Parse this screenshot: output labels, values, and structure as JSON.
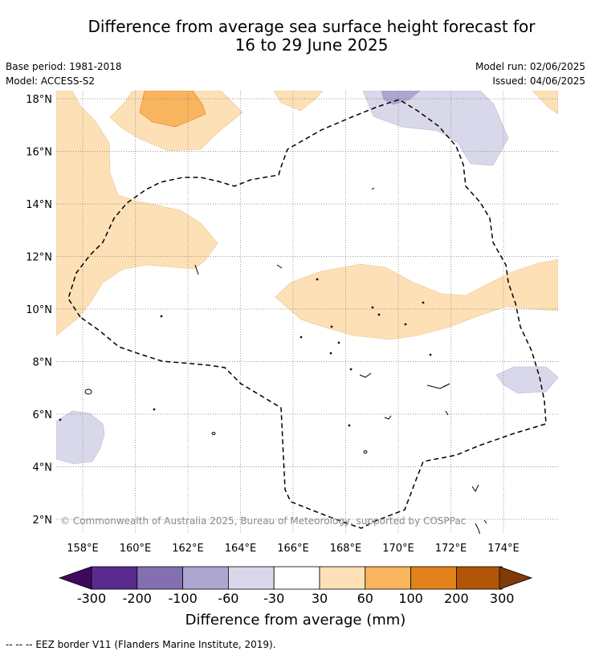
{
  "title": {
    "line1": "Difference from average sea surface height forecast for",
    "line2": "16 to 29 June 2025"
  },
  "meta": {
    "base_period": "Base period: 1981-2018",
    "model": "Model: ACCESS-S2",
    "model_run": "Model run: 02/06/2025",
    "issued": "Issued: 04/06/2025"
  },
  "map": {
    "lat_labels": [
      "18°N",
      "16°N",
      "14°N",
      "12°N",
      "10°N",
      "8°N",
      "6°N",
      "4°N",
      "2°N"
    ],
    "lon_labels": [
      "158°E",
      "160°E",
      "162°E",
      "164°E",
      "166°E",
      "168°E",
      "170°E",
      "172°E",
      "174°E"
    ],
    "copyright": "© Commonwealth of Australia 2025, Bureau of Meteorology, supported by COSPPac"
  },
  "colorbar": {
    "ticks": [
      "-300",
      "-200",
      "-100",
      "-60",
      "-30",
      "30",
      "60",
      "100",
      "200",
      "300"
    ],
    "colors": [
      "#3f0a5e",
      "#5b2a8e",
      "#8270b0",
      "#aca6d0",
      "#d8d8ea",
      "#ffffff",
      "#fde0b6",
      "#f9b45e",
      "#e2821a",
      "#b35508",
      "#7f3b08"
    ],
    "label": "Difference from average (mm)"
  },
  "footnote": "--  --  -- EEZ border V11 (Flanders Marine Institute, 2019)."
}
